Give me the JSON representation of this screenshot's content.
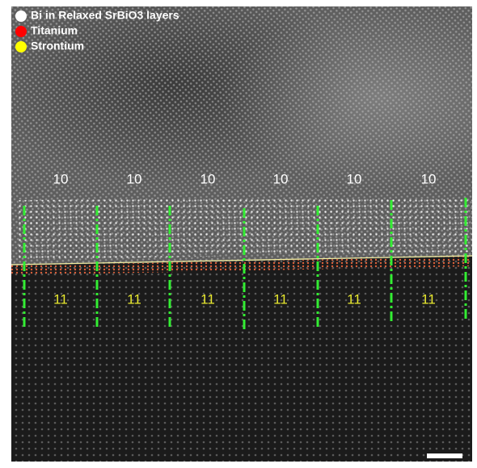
{
  "legend": [
    {
      "label": "Bi in Relaxed SrBiO3 layers",
      "color": "#ffffff"
    },
    {
      "label": "Titanium",
      "color": "#ff0000"
    },
    {
      "label": "Strontium",
      "color": "#ffff00"
    }
  ],
  "upper_labels": [
    "10",
    "10",
    "10",
    "10",
    "10",
    "10"
  ],
  "lower_labels": [
    "11",
    "11",
    "11",
    "11",
    "11",
    "11"
  ]
}
